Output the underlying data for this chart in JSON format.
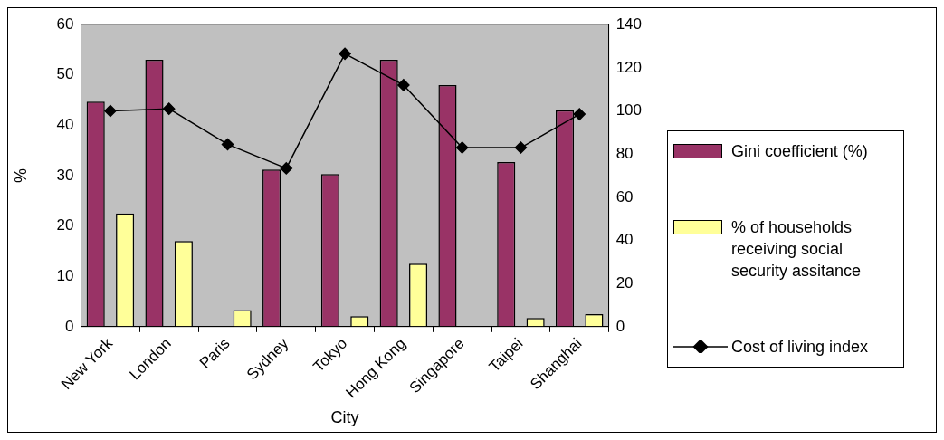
{
  "chart_data": {
    "type": "bar",
    "xlabel": "City",
    "ylabel": "%",
    "categories": [
      "New York",
      "London",
      "Paris",
      "Sydney",
      "Tokyo",
      "Hong Kong",
      "Singapore",
      "Taipei",
      "Shanghai"
    ],
    "series": [
      {
        "name": "Gini coefficient (%)",
        "color": "#993366",
        "values": [
          44.7,
          53,
          null,
          31.2,
          30.3,
          53,
          48,
          32.7,
          43
        ]
      },
      {
        "name": "% of households receiving social security assitance",
        "color": "#ffff99",
        "values": [
          22.5,
          17,
          3.3,
          null,
          2.1,
          12.5,
          null,
          1.7,
          2.5
        ]
      },
      {
        "name": "Cost of living index",
        "type": "line",
        "axis": "y2",
        "color": "#000000",
        "marker": "diamond",
        "values": [
          100,
          101,
          84.5,
          73.4,
          126.5,
          112,
          83,
          83,
          98.5
        ]
      }
    ],
    "ylim": [
      0,
      60
    ],
    "yticks": [
      0,
      10,
      20,
      30,
      40,
      50,
      60
    ],
    "y2lim": [
      0,
      140
    ],
    "y2ticks": [
      0,
      20,
      40,
      60,
      80,
      100,
      120,
      140
    ],
    "grid": false,
    "legend": "right"
  }
}
